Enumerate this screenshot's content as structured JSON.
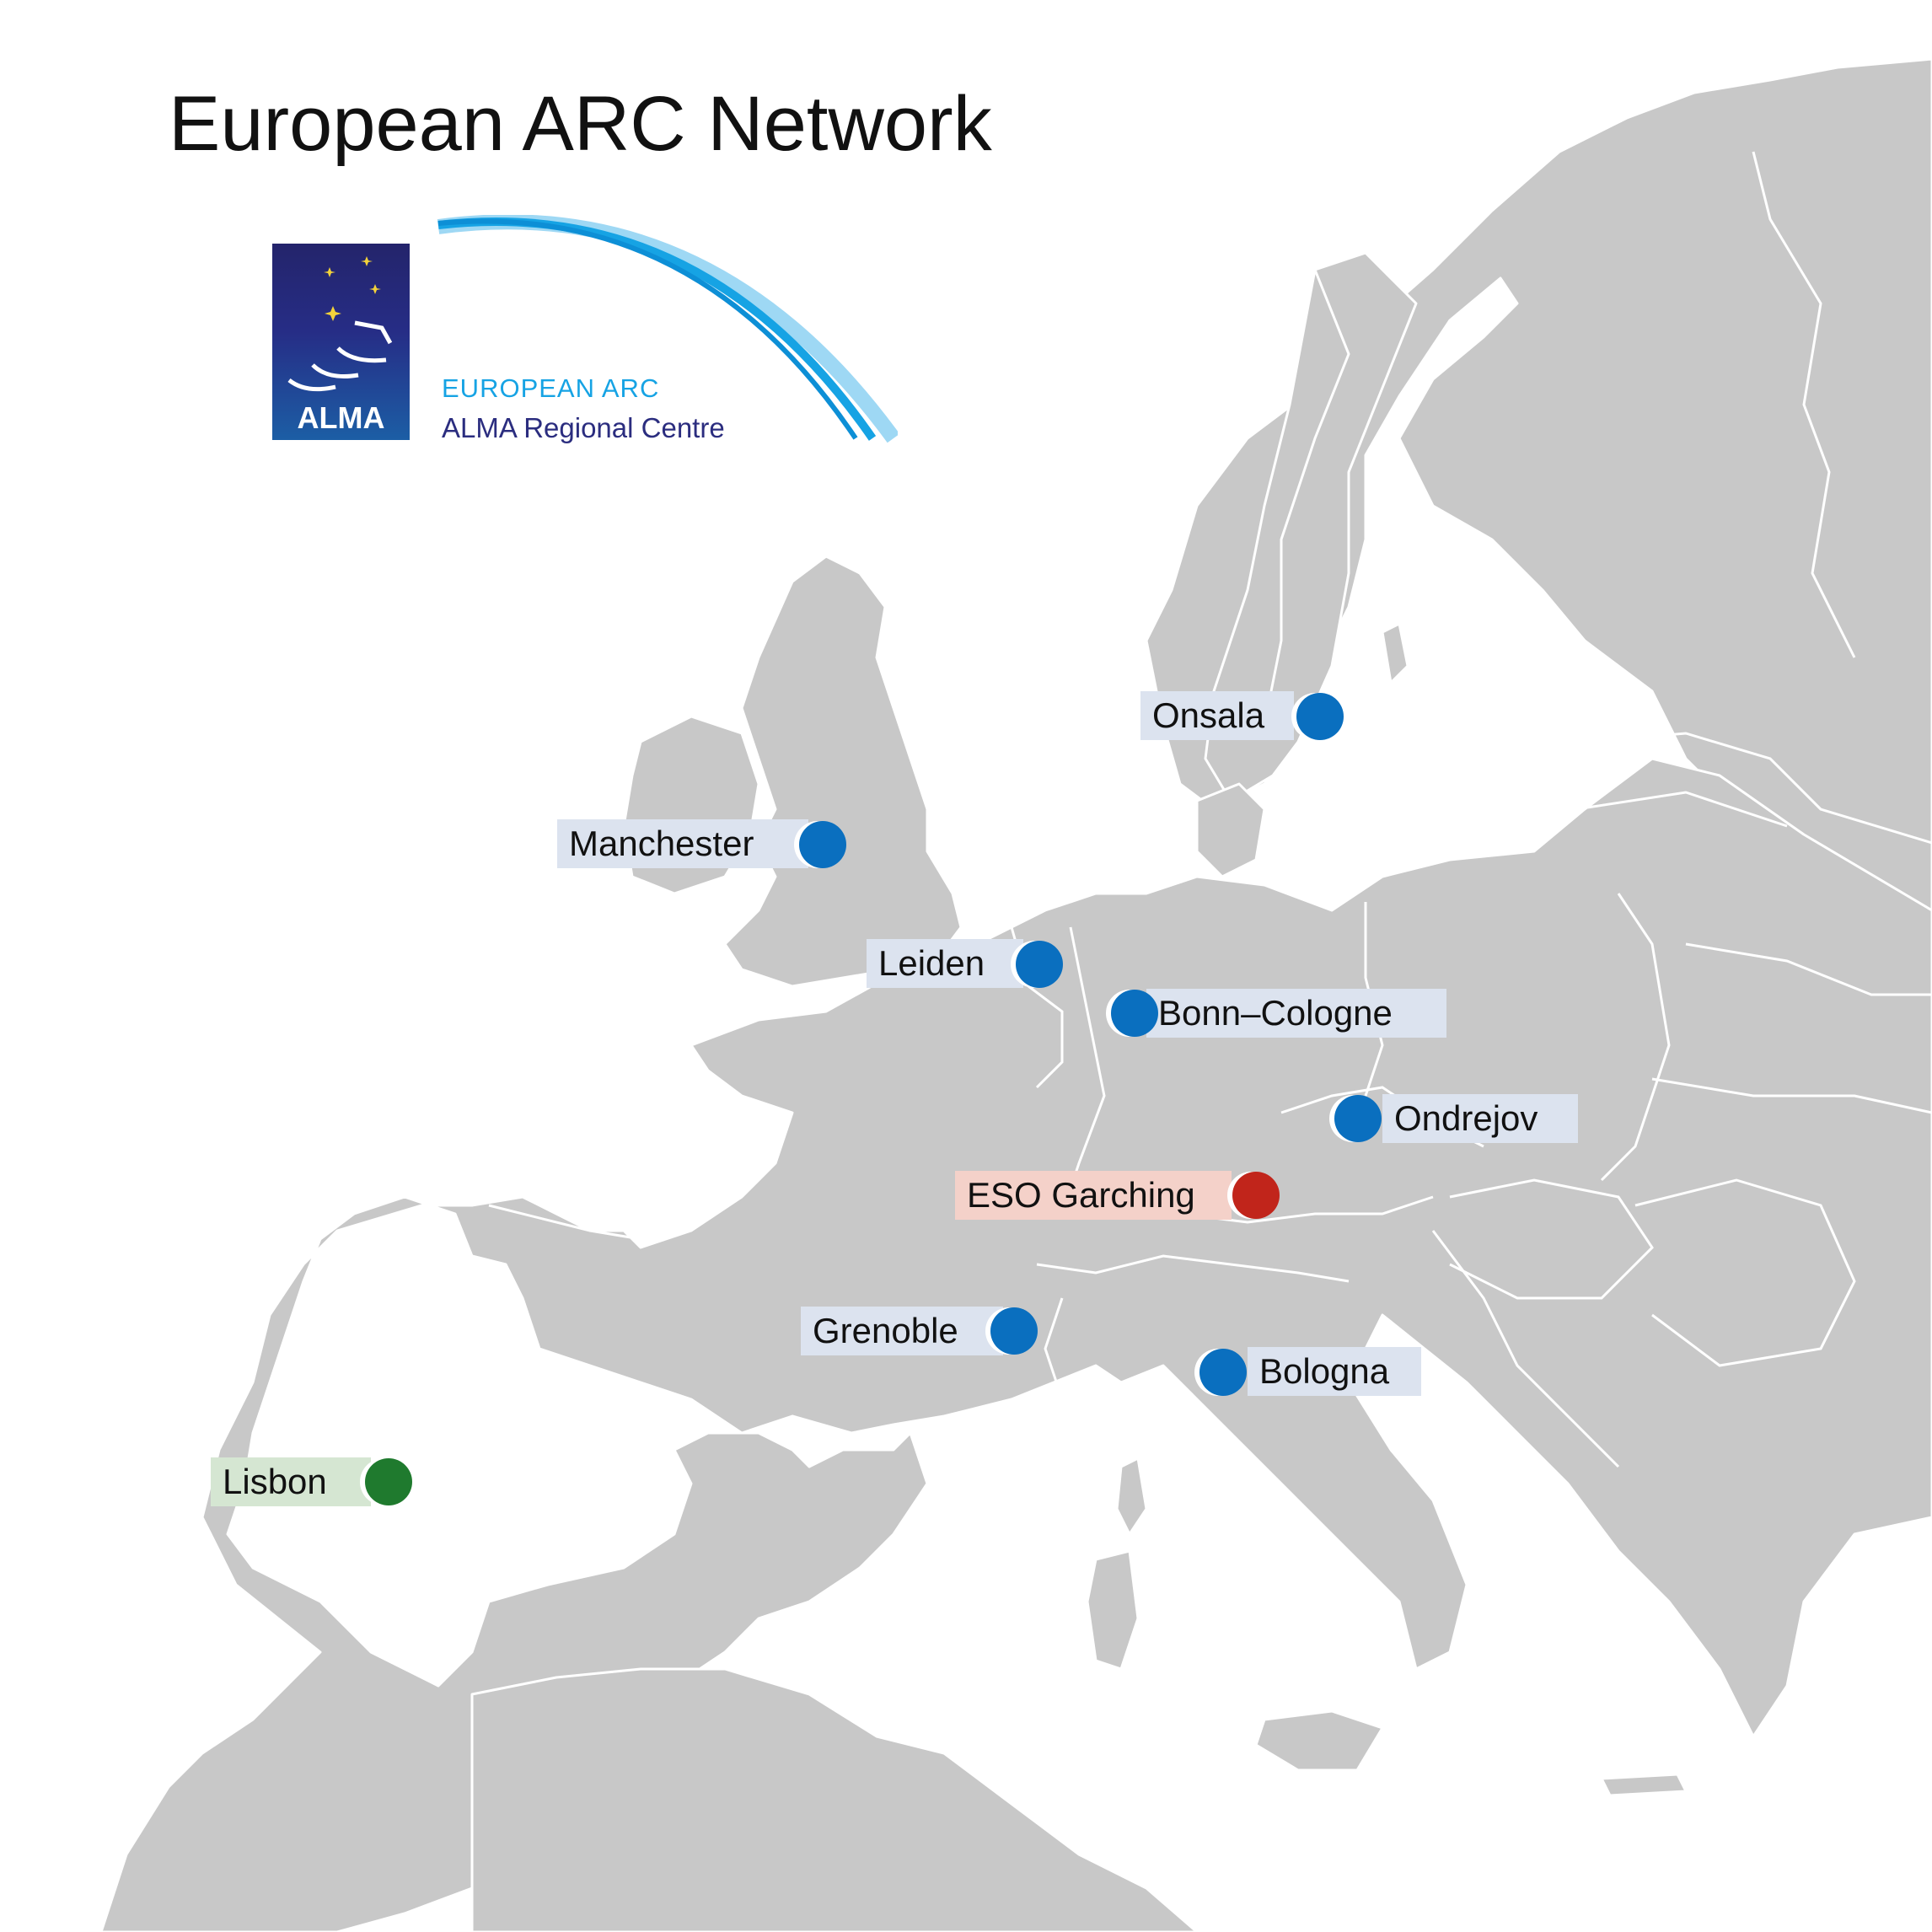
{
  "title": "European ARC Network",
  "logo": {
    "badge_text": "ALMA",
    "heading": "EUROPEAN ARC",
    "subheading": "ALMA Regional Centre"
  },
  "colors": {
    "land": "#c8c8c8",
    "border": "#ffffff",
    "sea": "#ffffff",
    "node_blue": "#0a6fbf",
    "node_red": "#c1251b",
    "node_green": "#1f7a2e",
    "arc_blue": "#16a3e4"
  },
  "nodes": [
    {
      "name": "Onsala",
      "type": "regional-node"
    },
    {
      "name": "Manchester",
      "type": "regional-node"
    },
    {
      "name": "Leiden",
      "type": "regional-node"
    },
    {
      "name": "Bonn–Cologne",
      "type": "regional-node"
    },
    {
      "name": "Ondrejov",
      "type": "regional-node"
    },
    {
      "name": "ESO Garching",
      "type": "central-node"
    },
    {
      "name": "Grenoble",
      "type": "regional-node"
    },
    {
      "name": "Bologna",
      "type": "regional-node"
    },
    {
      "name": "Lisbon",
      "type": "associated-node"
    }
  ]
}
